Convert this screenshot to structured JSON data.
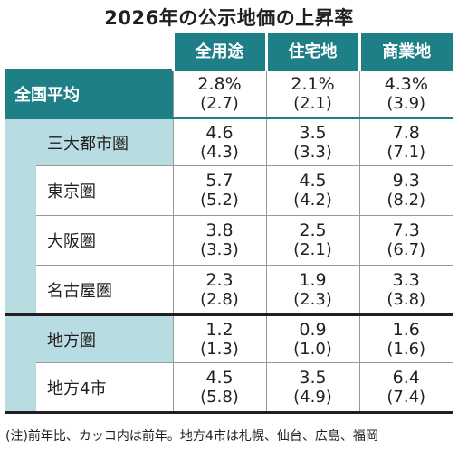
{
  "title": "2026年の公示地価の上昇率",
  "columns": [
    "全用途",
    "住宅地",
    "商業地"
  ],
  "national": {
    "label": "全国平均",
    "values": [
      [
        "2.8%",
        "(2.7)"
      ],
      [
        "2.1%",
        "(2.1)"
      ],
      [
        "4.3%",
        "(3.9)"
      ]
    ]
  },
  "rows": [
    {
      "label": "三大都市圏",
      "values": [
        [
          "4.6",
          "(4.3)"
        ],
        [
          "3.5",
          "(3.3)"
        ],
        [
          "7.8",
          "(7.1)"
        ]
      ]
    },
    {
      "label": "東京圏",
      "values": [
        [
          "5.7",
          "(5.2)"
        ],
        [
          "4.5",
          "(4.2)"
        ],
        [
          "9.3",
          "(8.2)"
        ]
      ]
    },
    {
      "label": "大阪圏",
      "values": [
        [
          "3.8",
          "(3.3)"
        ],
        [
          "2.5",
          "(2.1)"
        ],
        [
          "7.3",
          "(6.7)"
        ]
      ]
    },
    {
      "label": "名古屋圏",
      "values": [
        [
          "2.3",
          "(2.8)"
        ],
        [
          "1.9",
          "(2.3)"
        ],
        [
          "3.3",
          "(3.8)"
        ]
      ]
    },
    {
      "label": "地方圏",
      "values": [
        [
          "1.2",
          "(1.3)"
        ],
        [
          "0.9",
          "(1.0)"
        ],
        [
          "1.6",
          "(1.6)"
        ]
      ]
    },
    {
      "label": "地方4市",
      "values": [
        [
          "4.5",
          "(5.8)"
        ],
        [
          "3.5",
          "(4.9)"
        ],
        [
          "6.4",
          "(7.4)"
        ]
      ]
    }
  ],
  "note": "(注)前年比、カッコ内は前年。地方4市は札幌、仙台、広島、福岡",
  "colors": {
    "teal": "#1e7f87",
    "light_teal": "#b7dde2"
  }
}
